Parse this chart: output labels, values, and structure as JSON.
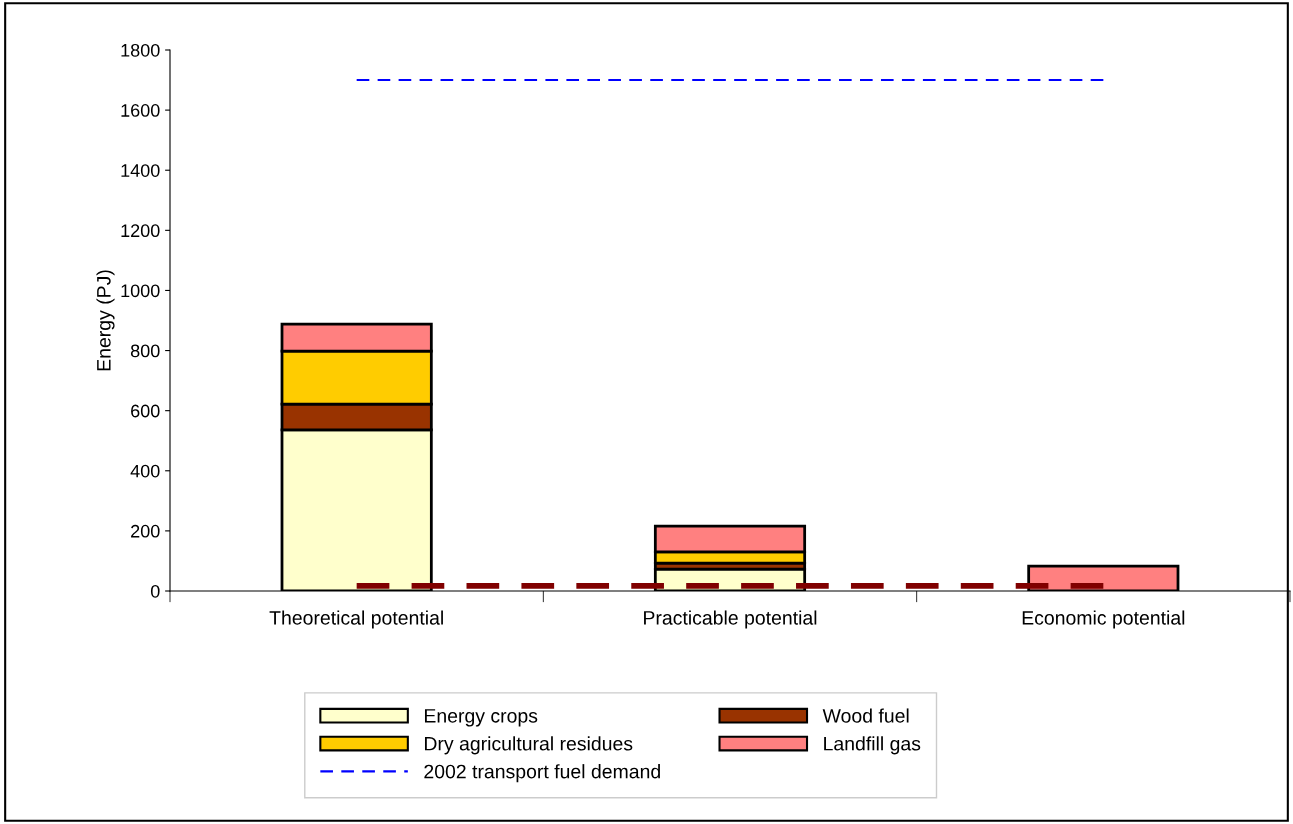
{
  "chart_data": {
    "type": "bar",
    "stacked": true,
    "ylabel": "Energy (PJ)",
    "categories": [
      "Theoretical potential",
      "Practicable potential",
      "Economic potential"
    ],
    "series": [
      {
        "name": "Energy crops",
        "color": "#ffffcc",
        "values": [
          536,
          73,
          null
        ]
      },
      {
        "name": "Wood fuel",
        "color": "#993300",
        "values": [
          86,
          20,
          null
        ]
      },
      {
        "name": "Dry agricultural residues",
        "color": "#ffcc00",
        "values": [
          176,
          37,
          null
        ]
      },
      {
        "name": "Landfill gas",
        "color": "#ff8080",
        "values": [
          90,
          86,
          83
        ]
      },
      {
        "name": "2002 transport fuel demand",
        "type": "line",
        "line_style": "dashed",
        "color": "#0000ff",
        "values": [
          1700,
          1700,
          1700
        ]
      },
      {
        "type": "line",
        "line_style": "dashed",
        "color": "#800000",
        "values": [
          17,
          17,
          17
        ]
      }
    ],
    "ylim": [
      0,
      1800
    ],
    "yticks": [
      0,
      200,
      400,
      600,
      800,
      1000,
      1200,
      1400,
      1600,
      1800
    ],
    "grid": false,
    "legend": "bottom"
  }
}
